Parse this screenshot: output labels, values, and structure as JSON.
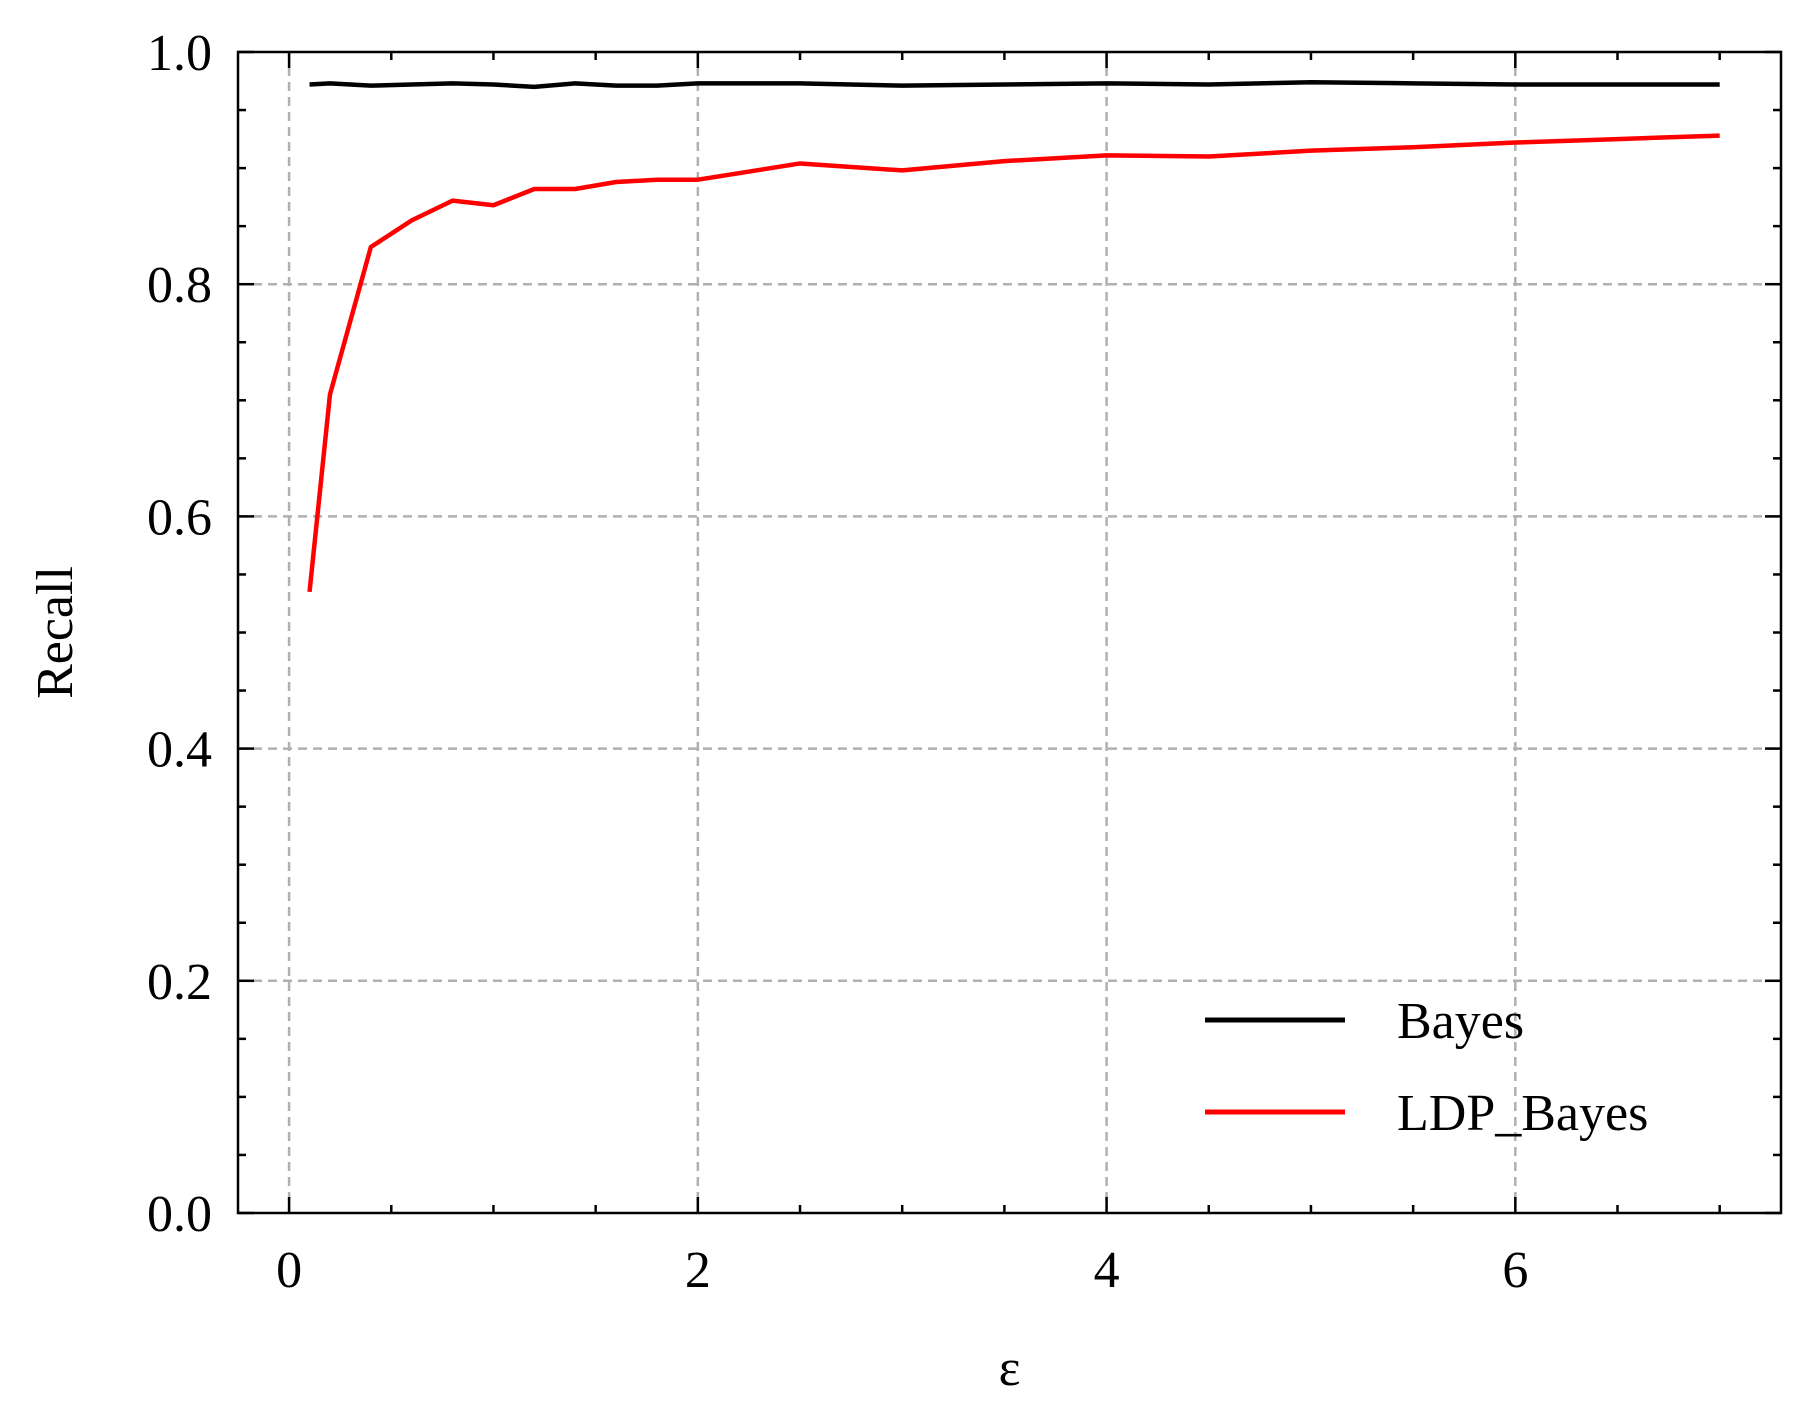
{
  "chart_data": {
    "type": "line",
    "title": "",
    "xlabel": "ε",
    "ylabel": "Recall",
    "xlim": [
      -0.25,
      7.3
    ],
    "ylim": [
      0.0,
      1.0
    ],
    "x_ticks": [
      0,
      2,
      4,
      6
    ],
    "x_tick_labels": [
      "0",
      "2",
      "4",
      "6"
    ],
    "y_ticks": [
      0.0,
      0.2,
      0.4,
      0.6,
      0.8,
      1.0
    ],
    "y_tick_labels": [
      "0.0",
      "0.2",
      "0.4",
      "0.6",
      "0.8",
      "1.0"
    ],
    "x_minor_step": 0.5,
    "y_minor_step": 0.05,
    "grid": true,
    "legend_position": "bottom-right",
    "series": [
      {
        "name": "Bayes",
        "color": "#000000",
        "x": [
          0.1,
          0.2,
          0.4,
          0.6,
          0.8,
          1.0,
          1.2,
          1.4,
          1.6,
          1.8,
          2.0,
          2.5,
          3.0,
          3.5,
          4.0,
          4.5,
          5.0,
          5.5,
          6.0,
          6.5,
          7.0
        ],
        "y": [
          0.972,
          0.973,
          0.971,
          0.972,
          0.973,
          0.972,
          0.97,
          0.973,
          0.971,
          0.971,
          0.973,
          0.973,
          0.971,
          0.972,
          0.973,
          0.972,
          0.974,
          0.973,
          0.972,
          0.972,
          0.972
        ]
      },
      {
        "name": "LDP_Bayes",
        "color": "#ff0000",
        "x": [
          0.1,
          0.2,
          0.4,
          0.6,
          0.8,
          1.0,
          1.2,
          1.4,
          1.6,
          1.8,
          2.0,
          2.5,
          3.0,
          3.5,
          4.0,
          4.5,
          5.0,
          5.5,
          6.0,
          6.5,
          7.0
        ],
        "y": [
          0.535,
          0.705,
          0.832,
          0.855,
          0.872,
          0.868,
          0.882,
          0.882,
          0.888,
          0.89,
          0.89,
          0.904,
          0.898,
          0.906,
          0.911,
          0.91,
          0.915,
          0.918,
          0.922,
          0.925,
          0.928
        ]
      }
    ]
  }
}
